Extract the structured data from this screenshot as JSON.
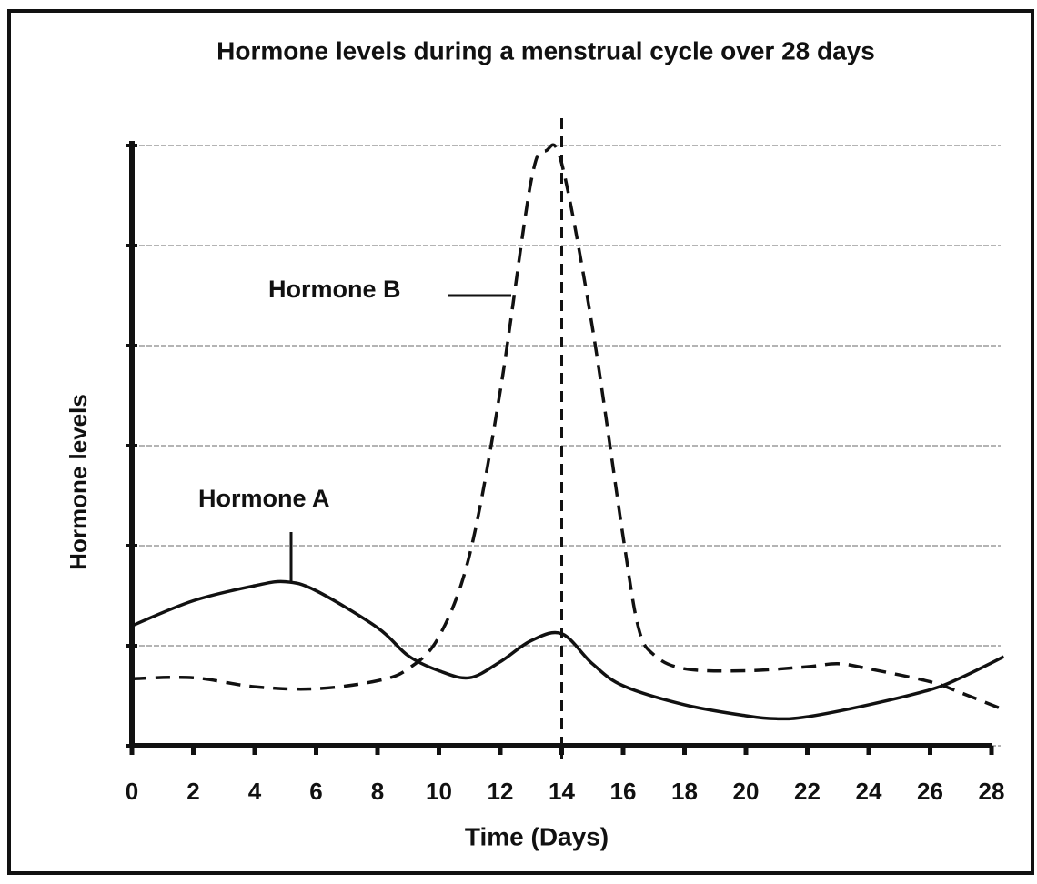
{
  "chart_data": {
    "type": "line",
    "title": "Hormone levels during a menstrual cycle over 28 days",
    "x_label": "Time (Days)",
    "y_label": "Hormone levels",
    "xlim": [
      0,
      28
    ],
    "xticks": [
      0,
      2,
      4,
      6,
      8,
      10,
      12,
      14,
      16,
      18,
      20,
      22,
      24,
      26,
      28
    ],
    "ylim": [
      0,
      6
    ],
    "yticks": [
      0,
      1,
      2,
      3,
      4,
      5,
      6
    ],
    "grid": true,
    "vline": 14,
    "series": [
      {
        "name": "Hormone A",
        "color": "#111111",
        "dash": false,
        "x": [
          0,
          2,
          4,
          5,
          6,
          8,
          9,
          10,
          11,
          12,
          13,
          14,
          15,
          16,
          18,
          20,
          21,
          22,
          24,
          26,
          27,
          28.4
        ],
        "values": [
          1.2,
          1.45,
          1.6,
          1.64,
          1.55,
          1.18,
          0.9,
          0.75,
          0.68,
          0.84,
          1.05,
          1.12,
          0.82,
          0.6,
          0.41,
          0.3,
          0.27,
          0.29,
          0.41,
          0.56,
          0.68,
          0.89
        ]
      },
      {
        "name": "Hormone B",
        "color": "#111111",
        "dash": true,
        "x": [
          0,
          2,
          4,
          6,
          8,
          9,
          10,
          11,
          12,
          13,
          13.5,
          14,
          15,
          16,
          16.5,
          17,
          18,
          20,
          22,
          23,
          24,
          26,
          27,
          28.4
        ],
        "values": [
          0.67,
          0.68,
          0.59,
          0.57,
          0.65,
          0.77,
          1.09,
          1.91,
          3.55,
          5.64,
          5.95,
          5.82,
          4.18,
          2.09,
          1.18,
          0.91,
          0.77,
          0.75,
          0.79,
          0.82,
          0.77,
          0.64,
          0.53,
          0.36
        ]
      }
    ]
  }
}
